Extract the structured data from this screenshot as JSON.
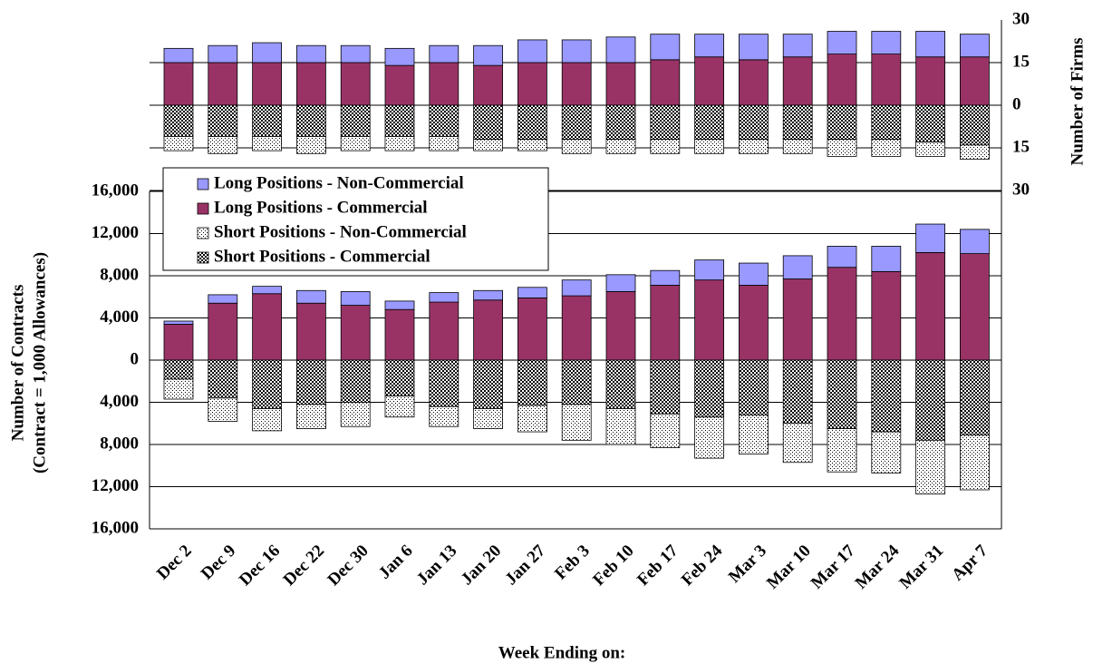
{
  "chart_data": {
    "type": "bar",
    "categories": [
      "Dec 2",
      "Dec 9",
      "Dec 16",
      "Dec 22",
      "Dec 30",
      "Jan 6",
      "Jan 13",
      "Jan 20",
      "Jan 27",
      "Feb 3",
      "Feb 10",
      "Feb 17",
      "Feb 24",
      "Mar 3",
      "Mar 10",
      "Mar 17",
      "Mar 24",
      "Mar 31",
      "Apr 7"
    ],
    "xlabel": "Week Ending on:",
    "ylabel": [
      "Number of Contracts",
      "(Contract = 1,000 Allowances)"
    ],
    "y2label": "Number of Firms",
    "ylim": [
      -16000,
      16000
    ],
    "yticks": [
      {
        "value": -16000,
        "label": "16,000"
      },
      {
        "value": -12000,
        "label": "12,000"
      },
      {
        "value": -8000,
        "label": "8,000"
      },
      {
        "value": -4000,
        "label": "4,000"
      },
      0,
      {
        "value": 4000,
        "label": "4,000"
      },
      {
        "value": 8000,
        "label": "8,000"
      },
      {
        "value": 12000,
        "label": "12,000"
      },
      {
        "value": 16000,
        "label": "16,000"
      }
    ],
    "y2lim": [
      -30,
      30
    ],
    "y2ticks": [
      {
        "value": -30,
        "label": "30"
      },
      {
        "value": -15,
        "label": "15"
      },
      0,
      15,
      30
    ],
    "grid": true,
    "legend": "upper left",
    "series": [
      {
        "name": "Long Positions - Non-Commercial",
        "color": "#9999ff",
        "pattern": "solid",
        "side": "long",
        "values": [
          300,
          800,
          700,
          1200,
          1300,
          800,
          900,
          900,
          1000,
          1500,
          1600,
          1400,
          1900,
          2100,
          2200,
          2000,
          2400,
          2700,
          2300
        ],
        "firms": [
          5,
          6,
          7,
          6,
          6,
          6,
          6,
          7,
          8,
          8,
          9,
          9,
          8,
          9,
          8,
          8,
          8,
          9,
          8
        ]
      },
      {
        "name": "Long Positions - Commercial",
        "color": "#993366",
        "pattern": "solid",
        "side": "long",
        "values": [
          3400,
          5400,
          6300,
          5400,
          5200,
          4800,
          5500,
          5700,
          5900,
          6100,
          6500,
          7100,
          7600,
          7100,
          7700,
          8800,
          8400,
          10200,
          10100
        ],
        "firms": [
          15,
          15,
          15,
          15,
          15,
          14,
          15,
          14,
          15,
          15,
          15,
          16,
          17,
          16,
          17,
          18,
          18,
          17,
          17
        ]
      },
      {
        "name": "Short Positions - Non-Commercial",
        "color": "#000000",
        "pattern": "dots",
        "side": "short",
        "values": [
          -1900,
          -2200,
          -2100,
          -2300,
          -2300,
          -2000,
          -1900,
          -1900,
          -2500,
          -3400,
          -3400,
          -3200,
          -3900,
          -3700,
          -3700,
          -4100,
          -3900,
          -5100,
          -5200
        ],
        "firms": [
          -5,
          -6,
          -5,
          -6,
          -5,
          -5,
          -5,
          -4,
          -4,
          -5,
          -5,
          -5,
          -5,
          -5,
          -5,
          -6,
          -6,
          -5,
          -5
        ]
      },
      {
        "name": "Short Positions - Commercial",
        "color": "#000000",
        "pattern": "checker",
        "side": "short",
        "values": [
          -1800,
          -3600,
          -4600,
          -4200,
          -4000,
          -3400,
          -4400,
          -4600,
          -4300,
          -4200,
          -4600,
          -5100,
          -5400,
          -5200,
          -6000,
          -6500,
          -6800,
          -7600,
          -7100
        ],
        "firms": [
          -11,
          -11,
          -11,
          -11,
          -11,
          -11,
          -11,
          -12,
          -12,
          -12,
          -12,
          -12,
          -12,
          -12,
          -12,
          -12,
          -12,
          -13,
          -14
        ]
      }
    ]
  }
}
